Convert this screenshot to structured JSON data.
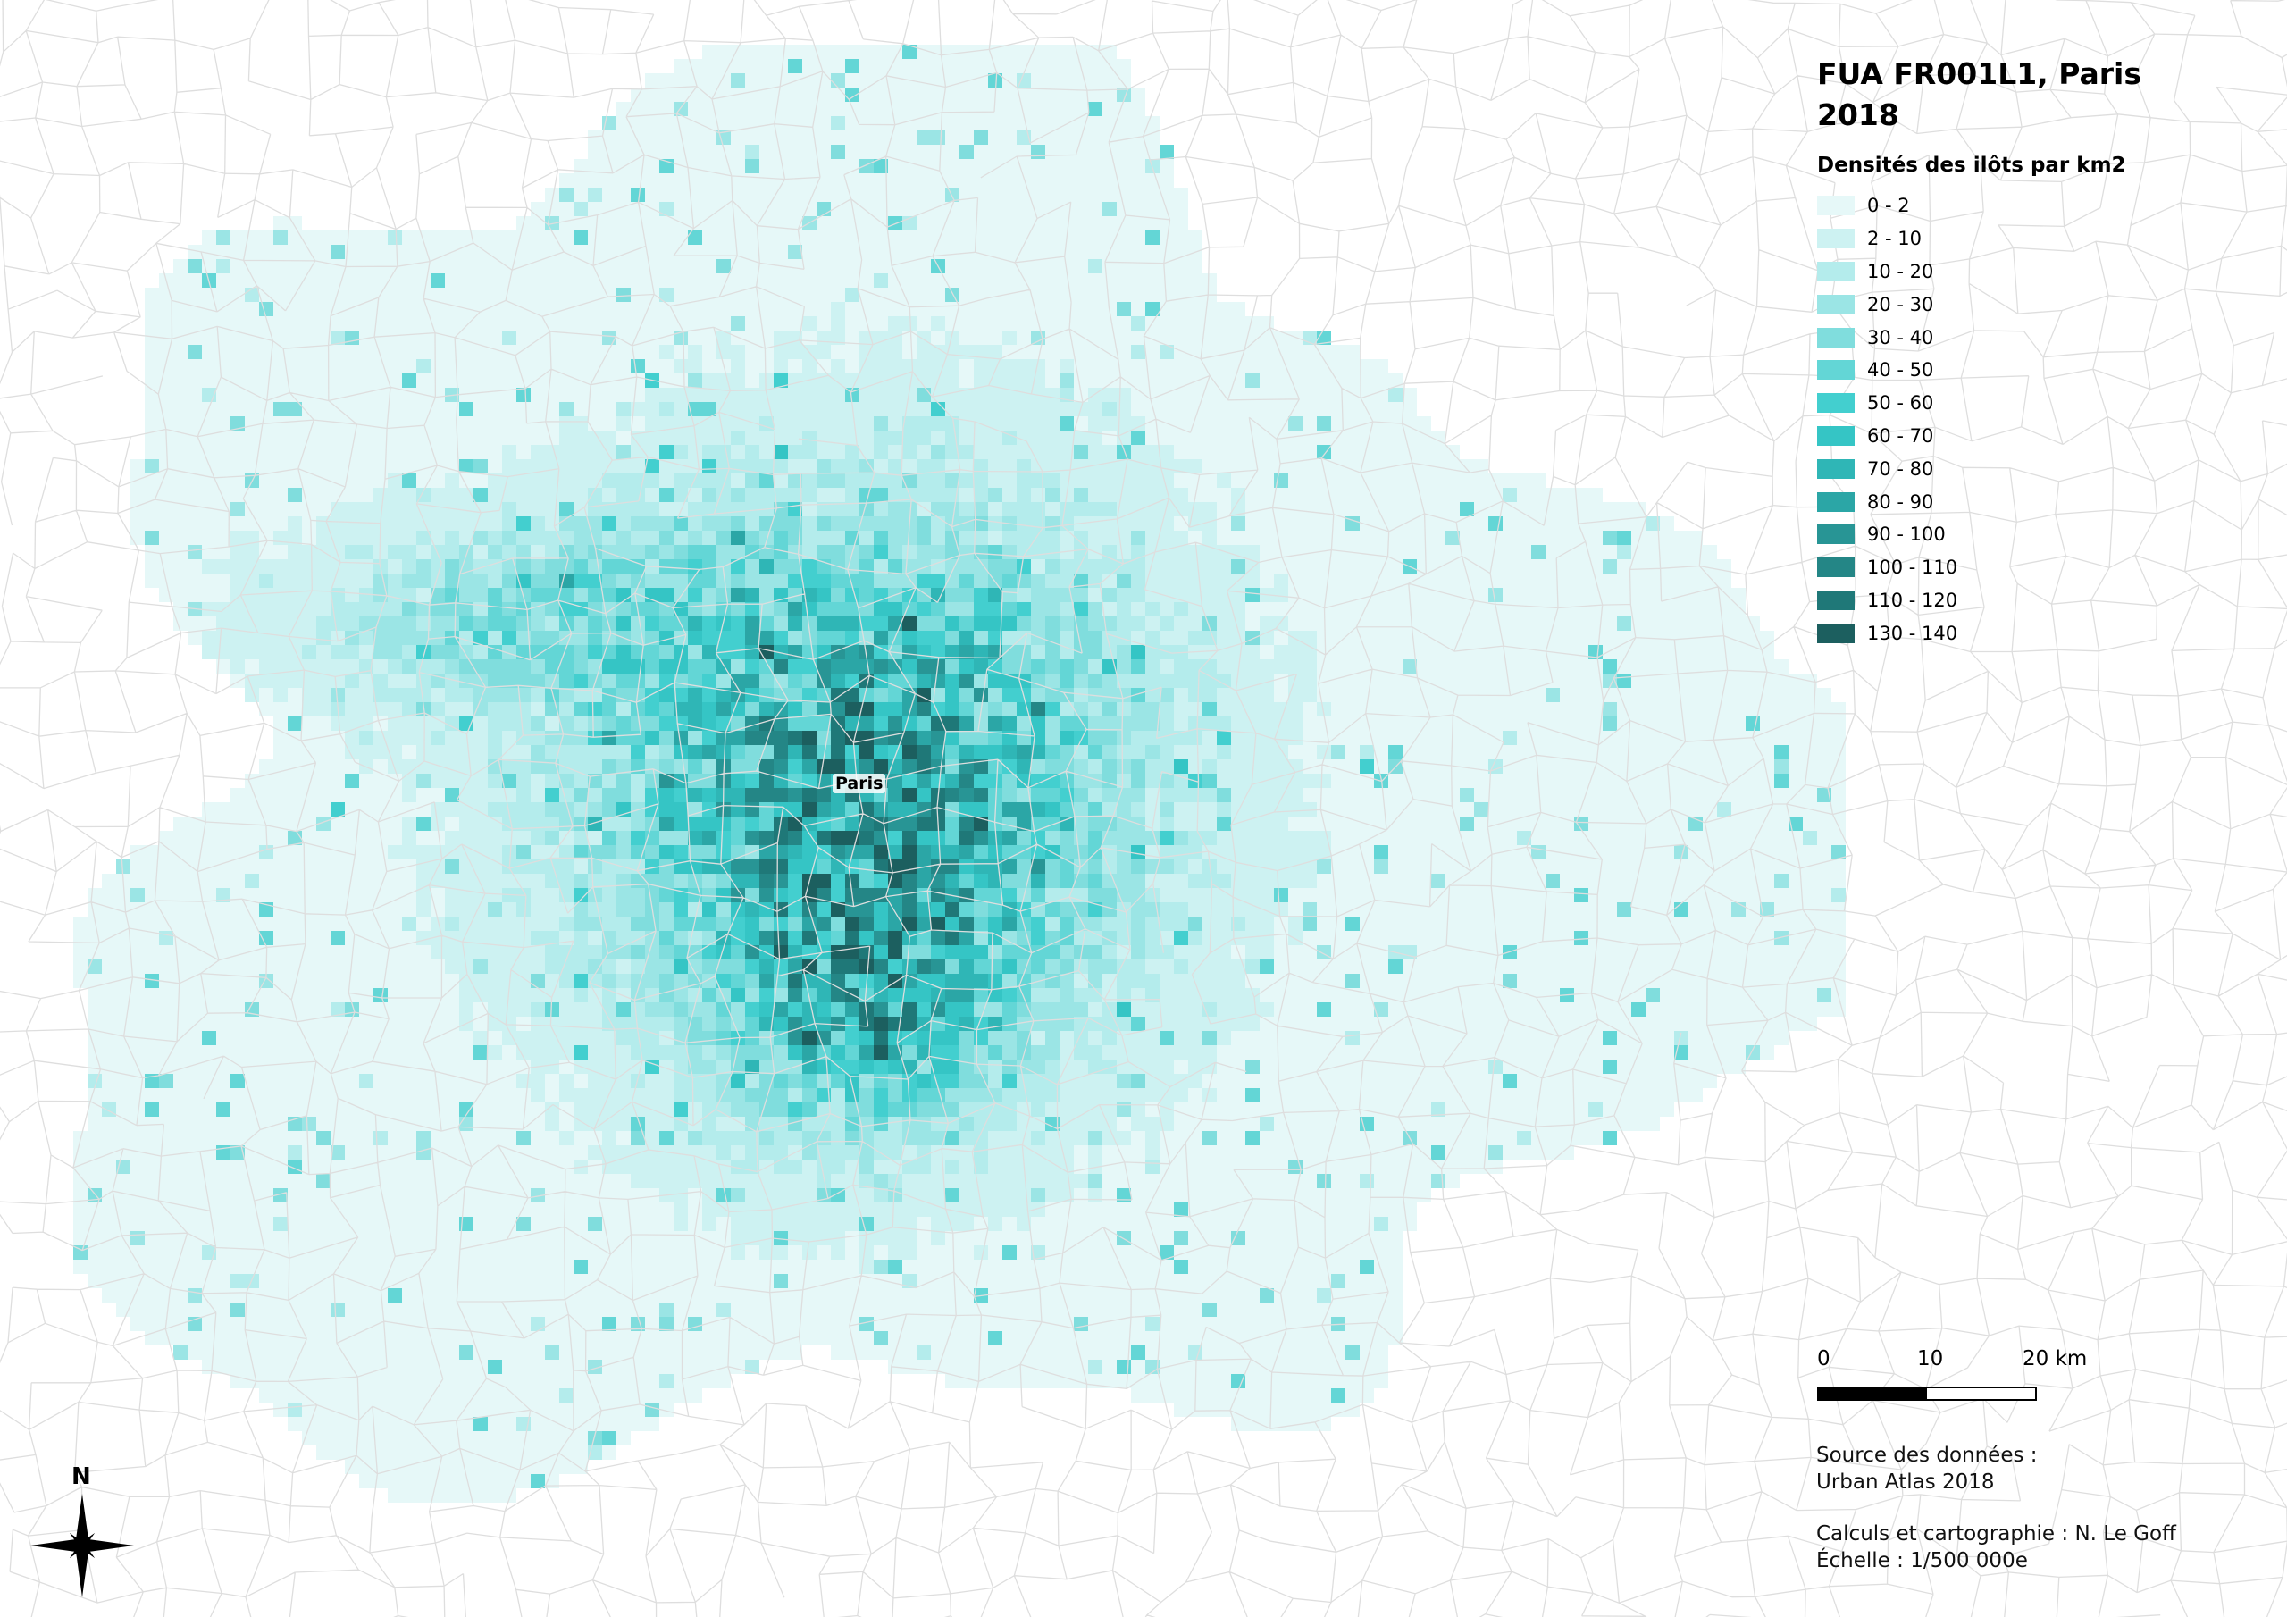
{
  "map": {
    "title": "FUA FR001L1, Paris 2018",
    "place_label": "Paris",
    "north_label": "N"
  },
  "legend": {
    "title": "Densités des ilôts par km2",
    "classes": [
      {
        "label": "0 - 2",
        "color": "#e6f8f8"
      },
      {
        "label": "2 - 10",
        "color": "#cdf2f2"
      },
      {
        "label": "10 - 20",
        "color": "#b4ecec"
      },
      {
        "label": "20 - 30",
        "color": "#9be5e5"
      },
      {
        "label": "30 - 40",
        "color": "#80dddd"
      },
      {
        "label": "40 - 50",
        "color": "#63d6d6"
      },
      {
        "label": "50 - 60",
        "color": "#43cfcf"
      },
      {
        "label": "60 - 70",
        "color": "#35c5c5"
      },
      {
        "label": "70 - 80",
        "color": "#2fb6b6"
      },
      {
        "label": "80 - 90",
        "color": "#2ba6a6"
      },
      {
        "label": "90 - 100",
        "color": "#289595"
      },
      {
        "label": "100 - 110",
        "color": "#248686"
      },
      {
        "label": "110 - 120",
        "color": "#1f7878"
      },
      {
        "label": "130 - 140",
        "color": "#1c5f5f"
      }
    ]
  },
  "scale_bar": {
    "labels": [
      "0",
      "10",
      "20 km"
    ]
  },
  "credits": {
    "source_line1": "Source des données :",
    "source_line2": "Urban Atlas 2018",
    "author": "Calculs et cartographie : N. Le Goff",
    "scale": "Échelle : 1/500 000e"
  },
  "colors": {
    "commune_border": "#dedede"
  }
}
